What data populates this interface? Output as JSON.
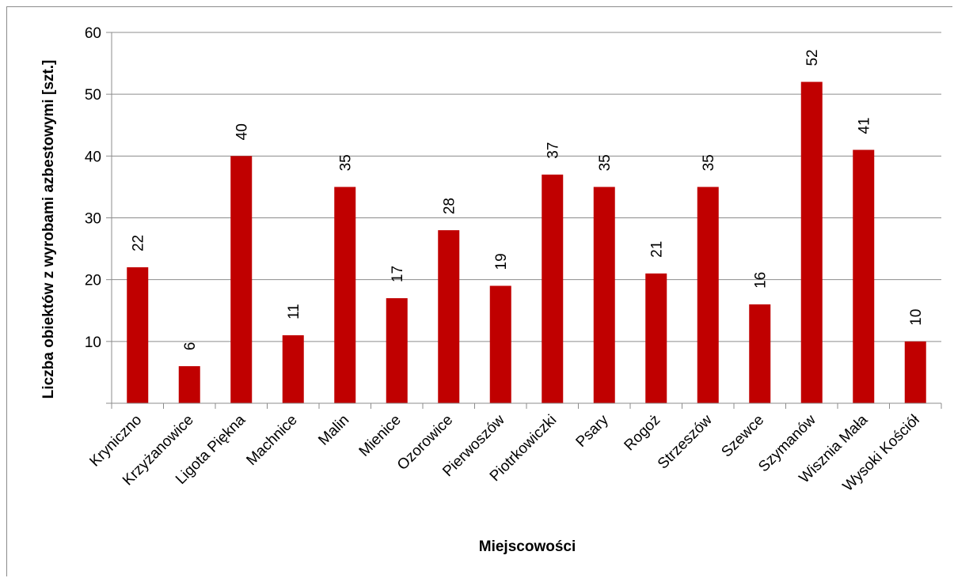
{
  "chart_data": {
    "type": "bar",
    "categories": [
      "Kryniczno",
      "Krzyżanowice",
      "Ligota Piękna",
      "Machnice",
      "Malin",
      "Mienice",
      "Ozorowice",
      "Pierwoszów",
      "Piotrkowiczki",
      "Psary",
      "Rogoż",
      "Strzeszów",
      "Szewce",
      "Szymanów",
      "Wisznia Mała",
      "Wysoki Kościół"
    ],
    "values": [
      22,
      6,
      40,
      11,
      35,
      17,
      28,
      19,
      37,
      35,
      21,
      35,
      16,
      52,
      41,
      10
    ],
    "title": "",
    "xlabel": "Miejscowości",
    "ylabel": "Liczba obiektów z wyrobami azbestowymi [szt.]",
    "ylim": [
      0,
      60
    ],
    "yticks": [
      10,
      20,
      30,
      40,
      50,
      60
    ],
    "grid": true,
    "bar_color": "#c00000",
    "data_labels": true
  }
}
